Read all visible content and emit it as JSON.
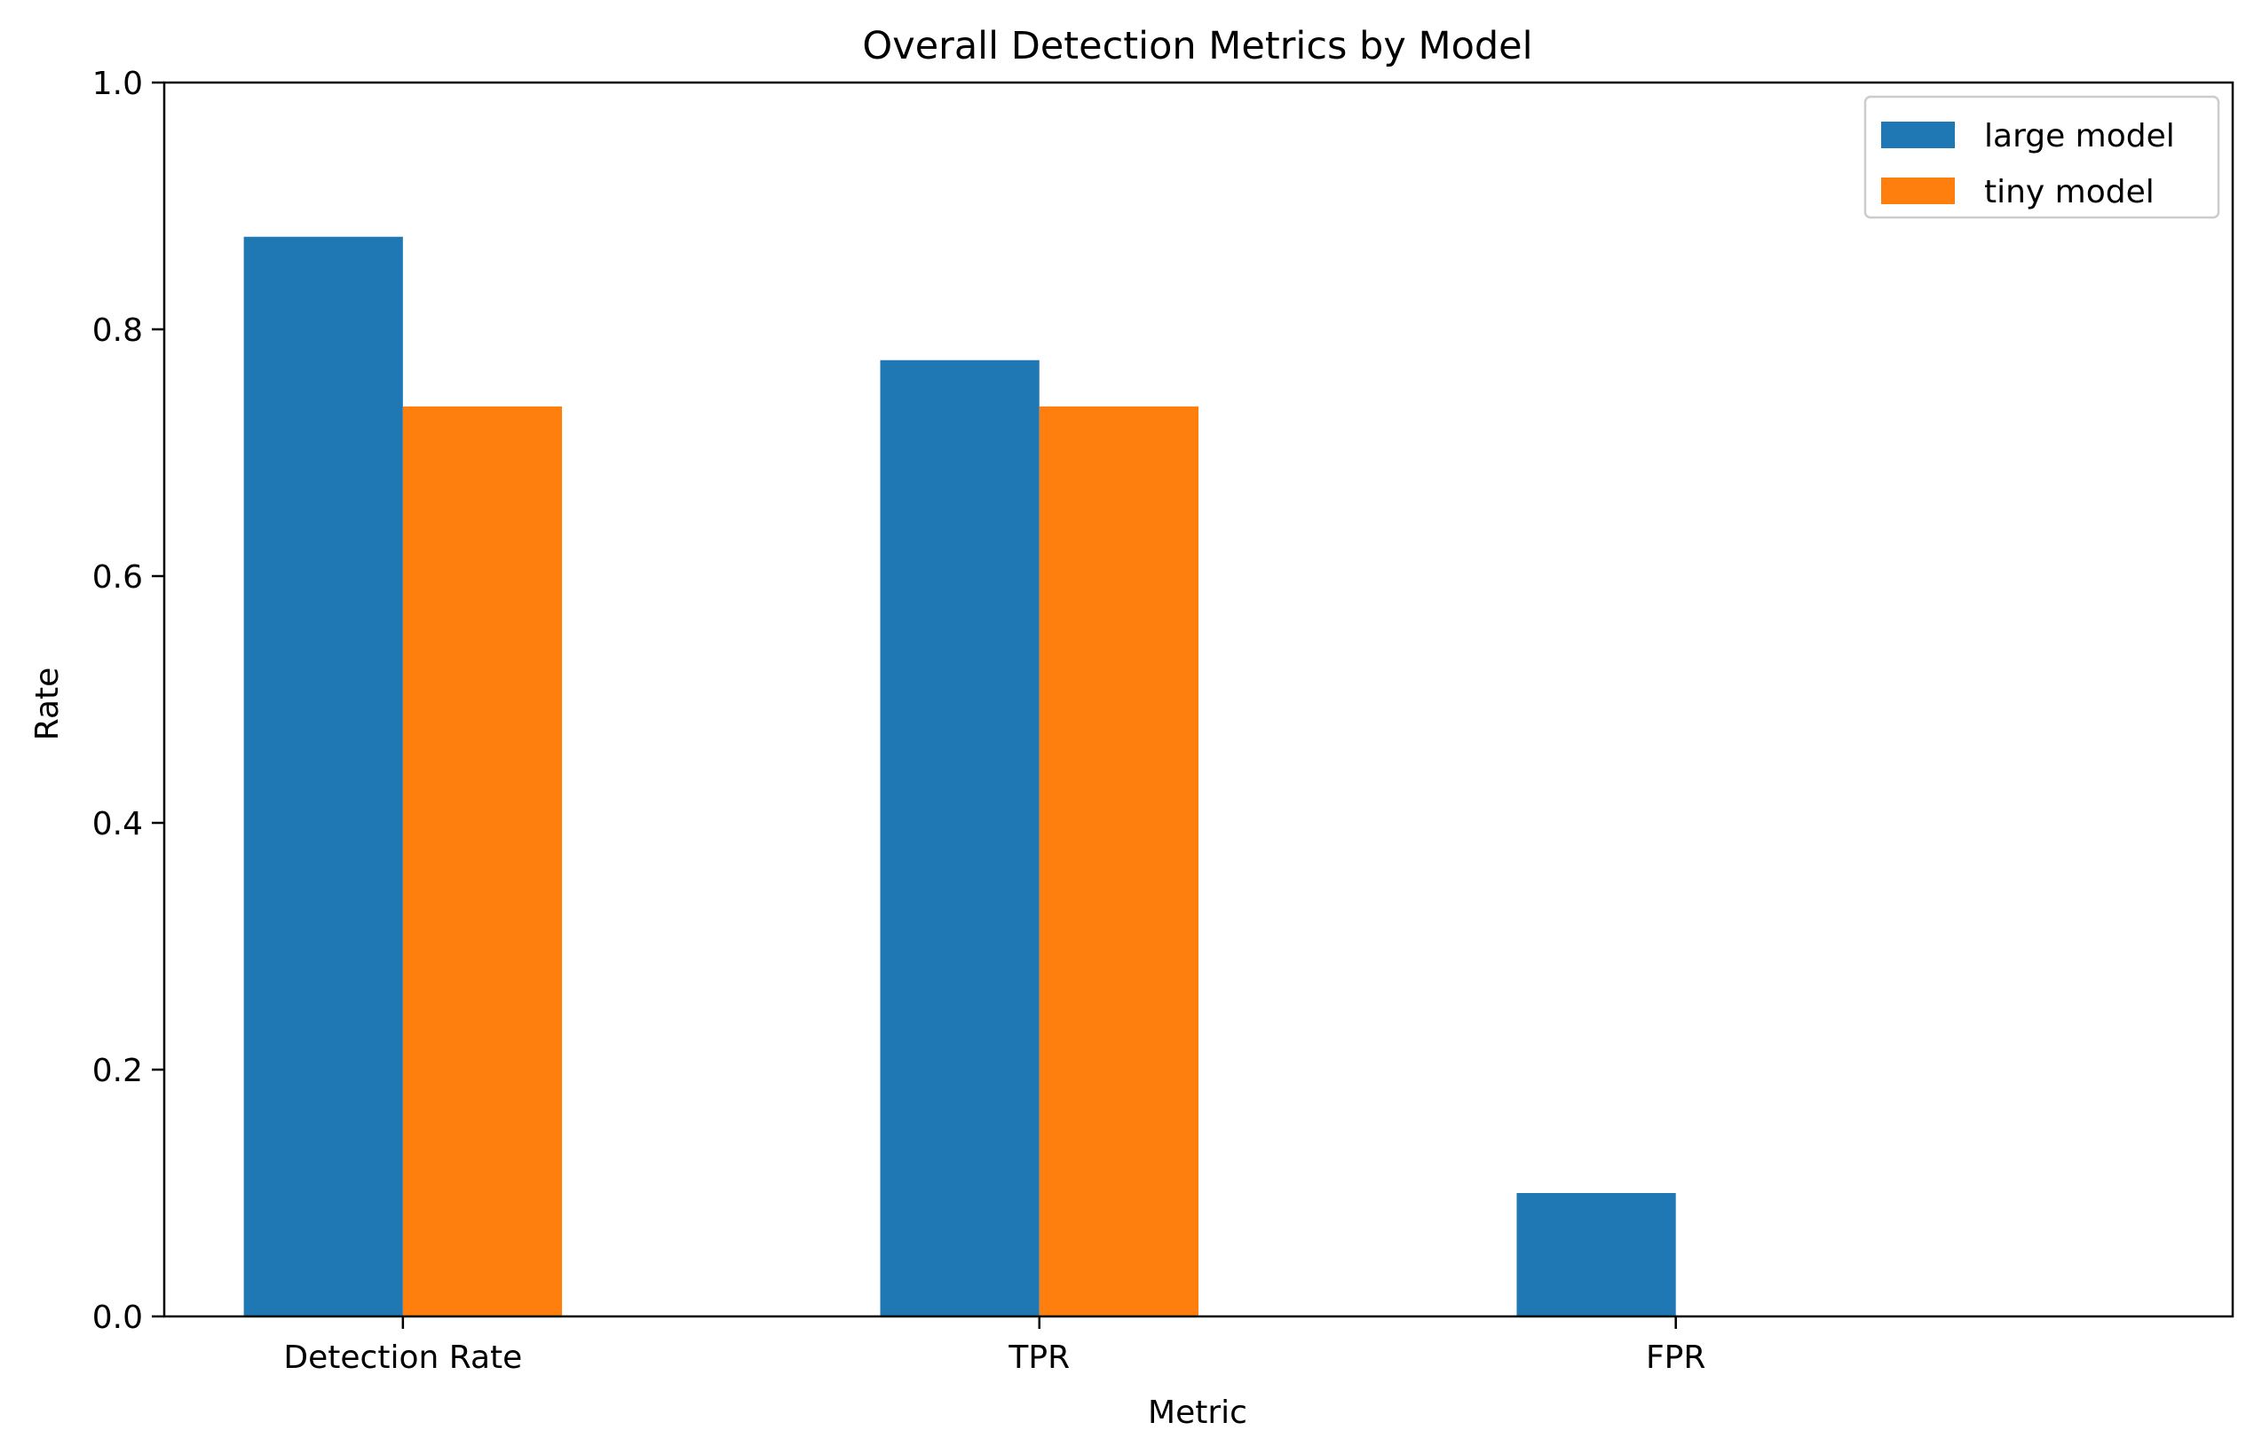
{
  "chart_data": {
    "type": "bar",
    "title": "Overall Detection Metrics by Model",
    "xlabel": "Metric",
    "ylabel": "Rate",
    "categories": [
      "Detection Rate",
      "TPR",
      "FPR"
    ],
    "series": [
      {
        "name": "large model",
        "values": [
          0.875,
          0.775,
          0.1
        ],
        "color": "#1f77b4"
      },
      {
        "name": "tiny model",
        "values": [
          0.7375,
          0.7375,
          0.0
        ],
        "color": "#ff7f0e"
      }
    ],
    "ylim": [
      0,
      1.0
    ],
    "yticks": [
      "0.0",
      "0.2",
      "0.4",
      "0.6",
      "0.8",
      "1.0"
    ],
    "grid": false,
    "legend_position": "top-right"
  }
}
